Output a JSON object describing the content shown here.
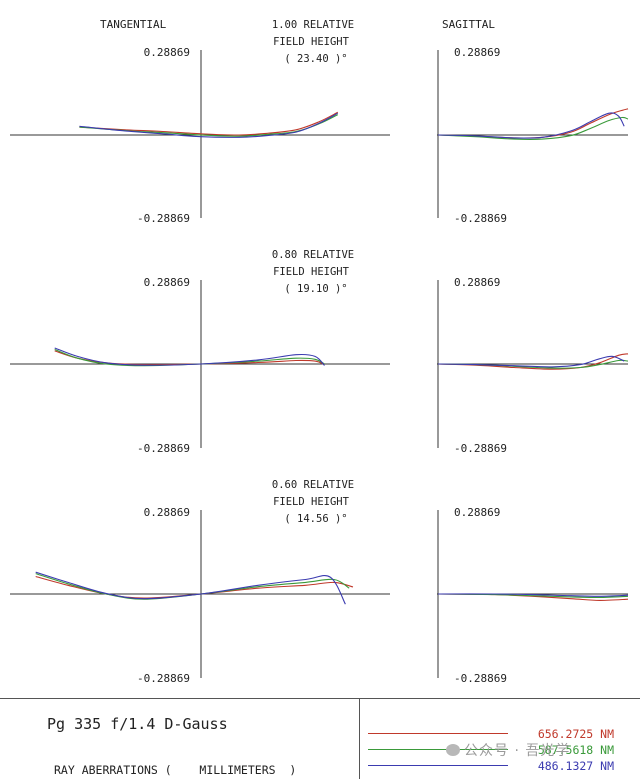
{
  "headers": {
    "tangential": "TANGENTIAL",
    "sagittal": "SAGITTAL"
  },
  "legend": [
    {
      "label": "656.2725 NM",
      "color": "#c0392b"
    },
    {
      "label": "587.5618 NM",
      "color": "#3a9a3a"
    },
    {
      "label": "486.1327 NM",
      "color": "#3b3bb0"
    }
  ],
  "footer": {
    "title": "Pg 335 f/1.4 D-Gauss",
    "units": "RAY ABERRATIONS (    MILLIMETERS  )"
  },
  "watermark": "公众号 · 吾光学",
  "chart_data": [
    {
      "type": "line",
      "panel": "tangential",
      "field_line1": "1.00  RELATIVE",
      "field_line2": "FIELD HEIGHT",
      "field_angle": "( 23.40 )°",
      "ymax_label": "0.28869",
      "ymin_label": "-0.28869",
      "ylim": [
        -0.28869,
        0.28869
      ],
      "xlim": [
        -1,
        1
      ],
      "series": [
        {
          "name": "656.2725 NM",
          "x": [
            -0.64,
            -0.4,
            -0.2,
            0,
            0.2,
            0.35,
            0.5,
            0.62,
            0.72
          ],
          "y": [
            0.027,
            0.018,
            0.012,
            0.004,
            0.0,
            0.006,
            0.018,
            0.045,
            0.078
          ]
        },
        {
          "name": "587.5618 NM",
          "x": [
            -0.64,
            -0.4,
            -0.2,
            0,
            0.2,
            0.35,
            0.5,
            0.62,
            0.72
          ],
          "y": [
            0.027,
            0.015,
            0.008,
            0.0,
            -0.004,
            0.002,
            0.012,
            0.038,
            0.07
          ]
        },
        {
          "name": "486.1327 NM",
          "x": [
            -0.64,
            -0.4,
            -0.2,
            0,
            0.2,
            0.35,
            0.5,
            0.62,
            0.72
          ],
          "y": [
            0.03,
            0.014,
            0.004,
            -0.006,
            -0.008,
            -0.002,
            0.01,
            0.04,
            0.075
          ]
        }
      ]
    },
    {
      "type": "line",
      "panel": "sagittal",
      "field_line1": "",
      "field_line2": "",
      "field_angle": "",
      "ymax_label": "0.28869",
      "ymin_label": "-0.28869",
      "ylim": [
        -0.28869,
        0.28869
      ],
      "xlim": [
        0,
        1
      ],
      "series": [
        {
          "name": "656.2725 NM",
          "x": [
            0,
            0.2,
            0.4,
            0.55,
            0.7,
            0.8,
            0.9,
            0.97,
            1.0
          ],
          "y": [
            0.0,
            -0.004,
            -0.01,
            -0.008,
            0.01,
            0.04,
            0.07,
            0.085,
            0.09
          ]
        },
        {
          "name": "587.5618 NM",
          "x": [
            0,
            0.2,
            0.4,
            0.55,
            0.7,
            0.8,
            0.9,
            0.97,
            1.0
          ],
          "y": [
            0.0,
            -0.006,
            -0.014,
            -0.014,
            -0.002,
            0.022,
            0.05,
            0.06,
            0.055
          ]
        },
        {
          "name": "486.1327 NM",
          "x": [
            0,
            0.2,
            0.4,
            0.55,
            0.7,
            0.8,
            0.9,
            0.95,
            0.98
          ],
          "y": [
            0.0,
            -0.003,
            -0.01,
            -0.008,
            0.014,
            0.045,
            0.075,
            0.065,
            0.03
          ]
        }
      ]
    },
    {
      "type": "line",
      "panel": "tangential",
      "field_line1": "0.80  RELATIVE",
      "field_line2": "FIELD HEIGHT",
      "field_angle": "( 19.10 )°",
      "ymax_label": "0.28869",
      "ymin_label": "-0.28869",
      "ylim": [
        -0.28869,
        0.28869
      ],
      "xlim": [
        -1,
        1
      ],
      "series": [
        {
          "name": "656.2725 NM",
          "x": [
            -0.77,
            -0.65,
            -0.5,
            -0.3,
            0,
            0.3,
            0.5,
            0.6,
            0.65
          ],
          "y": [
            0.045,
            0.02,
            0.004,
            -0.002,
            0.0,
            0.005,
            0.012,
            0.01,
            -0.002
          ]
        },
        {
          "name": "587.5618 NM",
          "x": [
            -0.77,
            -0.65,
            -0.5,
            -0.3,
            0,
            0.3,
            0.5,
            0.6,
            0.65
          ],
          "y": [
            0.05,
            0.02,
            0.0,
            -0.006,
            0.0,
            0.01,
            0.02,
            0.016,
            0.0
          ]
        },
        {
          "name": "486.1327 NM",
          "x": [
            -0.77,
            -0.65,
            -0.5,
            -0.3,
            0,
            0.3,
            0.5,
            0.6,
            0.65
          ],
          "y": [
            0.055,
            0.026,
            0.004,
            -0.004,
            0.0,
            0.014,
            0.032,
            0.026,
            -0.005
          ]
        }
      ]
    },
    {
      "type": "line",
      "panel": "sagittal",
      "field_line1": "",
      "field_line2": "",
      "field_angle": "",
      "ymax_label": "0.28869",
      "ymin_label": "-0.28869",
      "ylim": [
        -0.28869,
        0.28869
      ],
      "xlim": [
        0,
        1
      ],
      "series": [
        {
          "name": "656.2725 NM",
          "x": [
            0,
            0.2,
            0.4,
            0.6,
            0.75,
            0.85,
            0.95,
            1.0
          ],
          "y": [
            0.0,
            -0.004,
            -0.012,
            -0.018,
            -0.012,
            0.004,
            0.03,
            0.035
          ]
        },
        {
          "name": "587.5618 NM",
          "x": [
            0,
            0.2,
            0.4,
            0.6,
            0.75,
            0.85,
            0.95,
            1.0
          ],
          "y": [
            0.0,
            -0.002,
            -0.008,
            -0.014,
            -0.012,
            -0.002,
            0.012,
            0.01
          ]
        },
        {
          "name": "486.1327 NM",
          "x": [
            0,
            0.2,
            0.4,
            0.6,
            0.75,
            0.85,
            0.92,
            0.98
          ],
          "y": [
            0.0,
            -0.002,
            -0.006,
            -0.01,
            -0.002,
            0.018,
            0.026,
            0.01
          ]
        }
      ]
    },
    {
      "type": "line",
      "panel": "tangential",
      "field_line1": "0.60  RELATIVE",
      "field_line2": "FIELD HEIGHT",
      "field_angle": "( 14.56 )°",
      "ymax_label": "0.28869",
      "ymin_label": "-0.28869",
      "ylim": [
        -0.28869,
        0.28869
      ],
      "xlim": [
        -1,
        1
      ],
      "series": [
        {
          "name": "656.2725 NM",
          "x": [
            -0.87,
            -0.7,
            -0.5,
            -0.3,
            0,
            0.3,
            0.55,
            0.7,
            0.8
          ],
          "y": [
            0.06,
            0.03,
            0.0,
            -0.014,
            0.0,
            0.02,
            0.03,
            0.04,
            0.024
          ]
        },
        {
          "name": "587.5618 NM",
          "x": [
            -0.87,
            -0.7,
            -0.5,
            -0.3,
            0,
            0.3,
            0.55,
            0.7,
            0.78
          ],
          "y": [
            0.07,
            0.035,
            0.0,
            -0.018,
            0.0,
            0.025,
            0.04,
            0.05,
            0.02
          ]
        },
        {
          "name": "486.1327 NM",
          "x": [
            -0.87,
            -0.7,
            -0.5,
            -0.3,
            0,
            0.3,
            0.55,
            0.68,
            0.76
          ],
          "y": [
            0.075,
            0.04,
            0.002,
            -0.016,
            0.0,
            0.03,
            0.05,
            0.058,
            -0.035
          ]
        }
      ]
    },
    {
      "type": "line",
      "panel": "sagittal",
      "field_line1": "",
      "field_line2": "",
      "field_angle": "",
      "ymax_label": "0.28869",
      "ymin_label": "-0.28869",
      "ylim": [
        -0.28869,
        0.28869
      ],
      "xlim": [
        0,
        1
      ],
      "series": [
        {
          "name": "656.2725 NM",
          "x": [
            0,
            0.3,
            0.5,
            0.7,
            0.85,
            1.0
          ],
          "y": [
            0.0,
            -0.002,
            -0.008,
            -0.016,
            -0.022,
            -0.018
          ]
        },
        {
          "name": "587.5618 NM",
          "x": [
            0,
            0.3,
            0.5,
            0.7,
            0.85,
            1.0
          ],
          "y": [
            0.0,
            -0.002,
            -0.006,
            -0.01,
            -0.012,
            -0.008
          ]
        },
        {
          "name": "486.1327 NM",
          "x": [
            0,
            0.3,
            0.5,
            0.7,
            0.85,
            1.0
          ],
          "y": [
            0.0,
            0.0,
            -0.002,
            -0.006,
            -0.008,
            -0.004
          ]
        }
      ]
    }
  ]
}
